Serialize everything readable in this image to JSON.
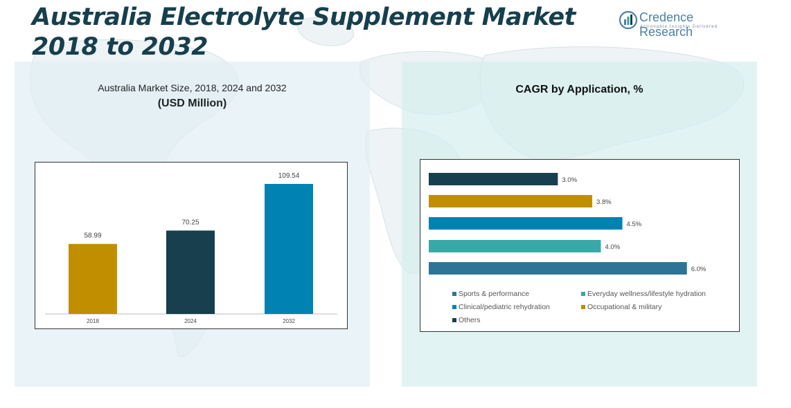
{
  "title": "Australia Electrolyte Supplement Market 2018 to 2032",
  "logo": {
    "name": "Credence Research",
    "tagline": "Actionable Insights Delivered",
    "icon": "bar-chart-circle-logo"
  },
  "colors": {
    "dark": "#173f4d",
    "gold": "#c18e00",
    "blue": "#0083b3",
    "teal": "#39a8a8",
    "steel": "#2e7497"
  },
  "chart_data": [
    {
      "type": "bar",
      "title": "Australia Market Size, 2018, 2024 and 2032",
      "subtitle": "(USD Million)",
      "categories": [
        "2018",
        "2024",
        "2032"
      ],
      "values": [
        58.99,
        70.25,
        109.54
      ],
      "value_labels": [
        "58.99",
        "70.25",
        "109.54"
      ],
      "bar_colors": [
        "#c18e00",
        "#173f4d",
        "#0083b3"
      ],
      "ylim": [
        0,
        120
      ],
      "grid": false
    },
    {
      "type": "bar",
      "orientation": "horizontal",
      "title": "CAGR by Application, %",
      "categories": [
        "Others",
        "Occupational & military",
        "Clinical/pediatric rehydration",
        "Everyday wellness/lifestyle hydration",
        "Sports & performance"
      ],
      "values": [
        3.0,
        3.8,
        4.5,
        4.0,
        6.0
      ],
      "value_labels": [
        "3.0%",
        "3.8%",
        "4.5%",
        "4.0%",
        "6.0%"
      ],
      "bar_colors": [
        "#173f4d",
        "#c18e00",
        "#0083b3",
        "#39a8a8",
        "#2e7497"
      ],
      "xlim": [
        0,
        6.6
      ],
      "legend": [
        {
          "label": "Sports & performance",
          "color": "#2e7497"
        },
        {
          "label": "Everyday wellness/lifestyle hydration",
          "color": "#39a8a8"
        },
        {
          "label": "Clinical/pediatric rehydration",
          "color": "#0083b3"
        },
        {
          "label": "Occupational & military",
          "color": "#c18e00"
        },
        {
          "label": "Others",
          "color": "#173f4d"
        }
      ],
      "legend_position": "bottom",
      "grid": false
    }
  ]
}
